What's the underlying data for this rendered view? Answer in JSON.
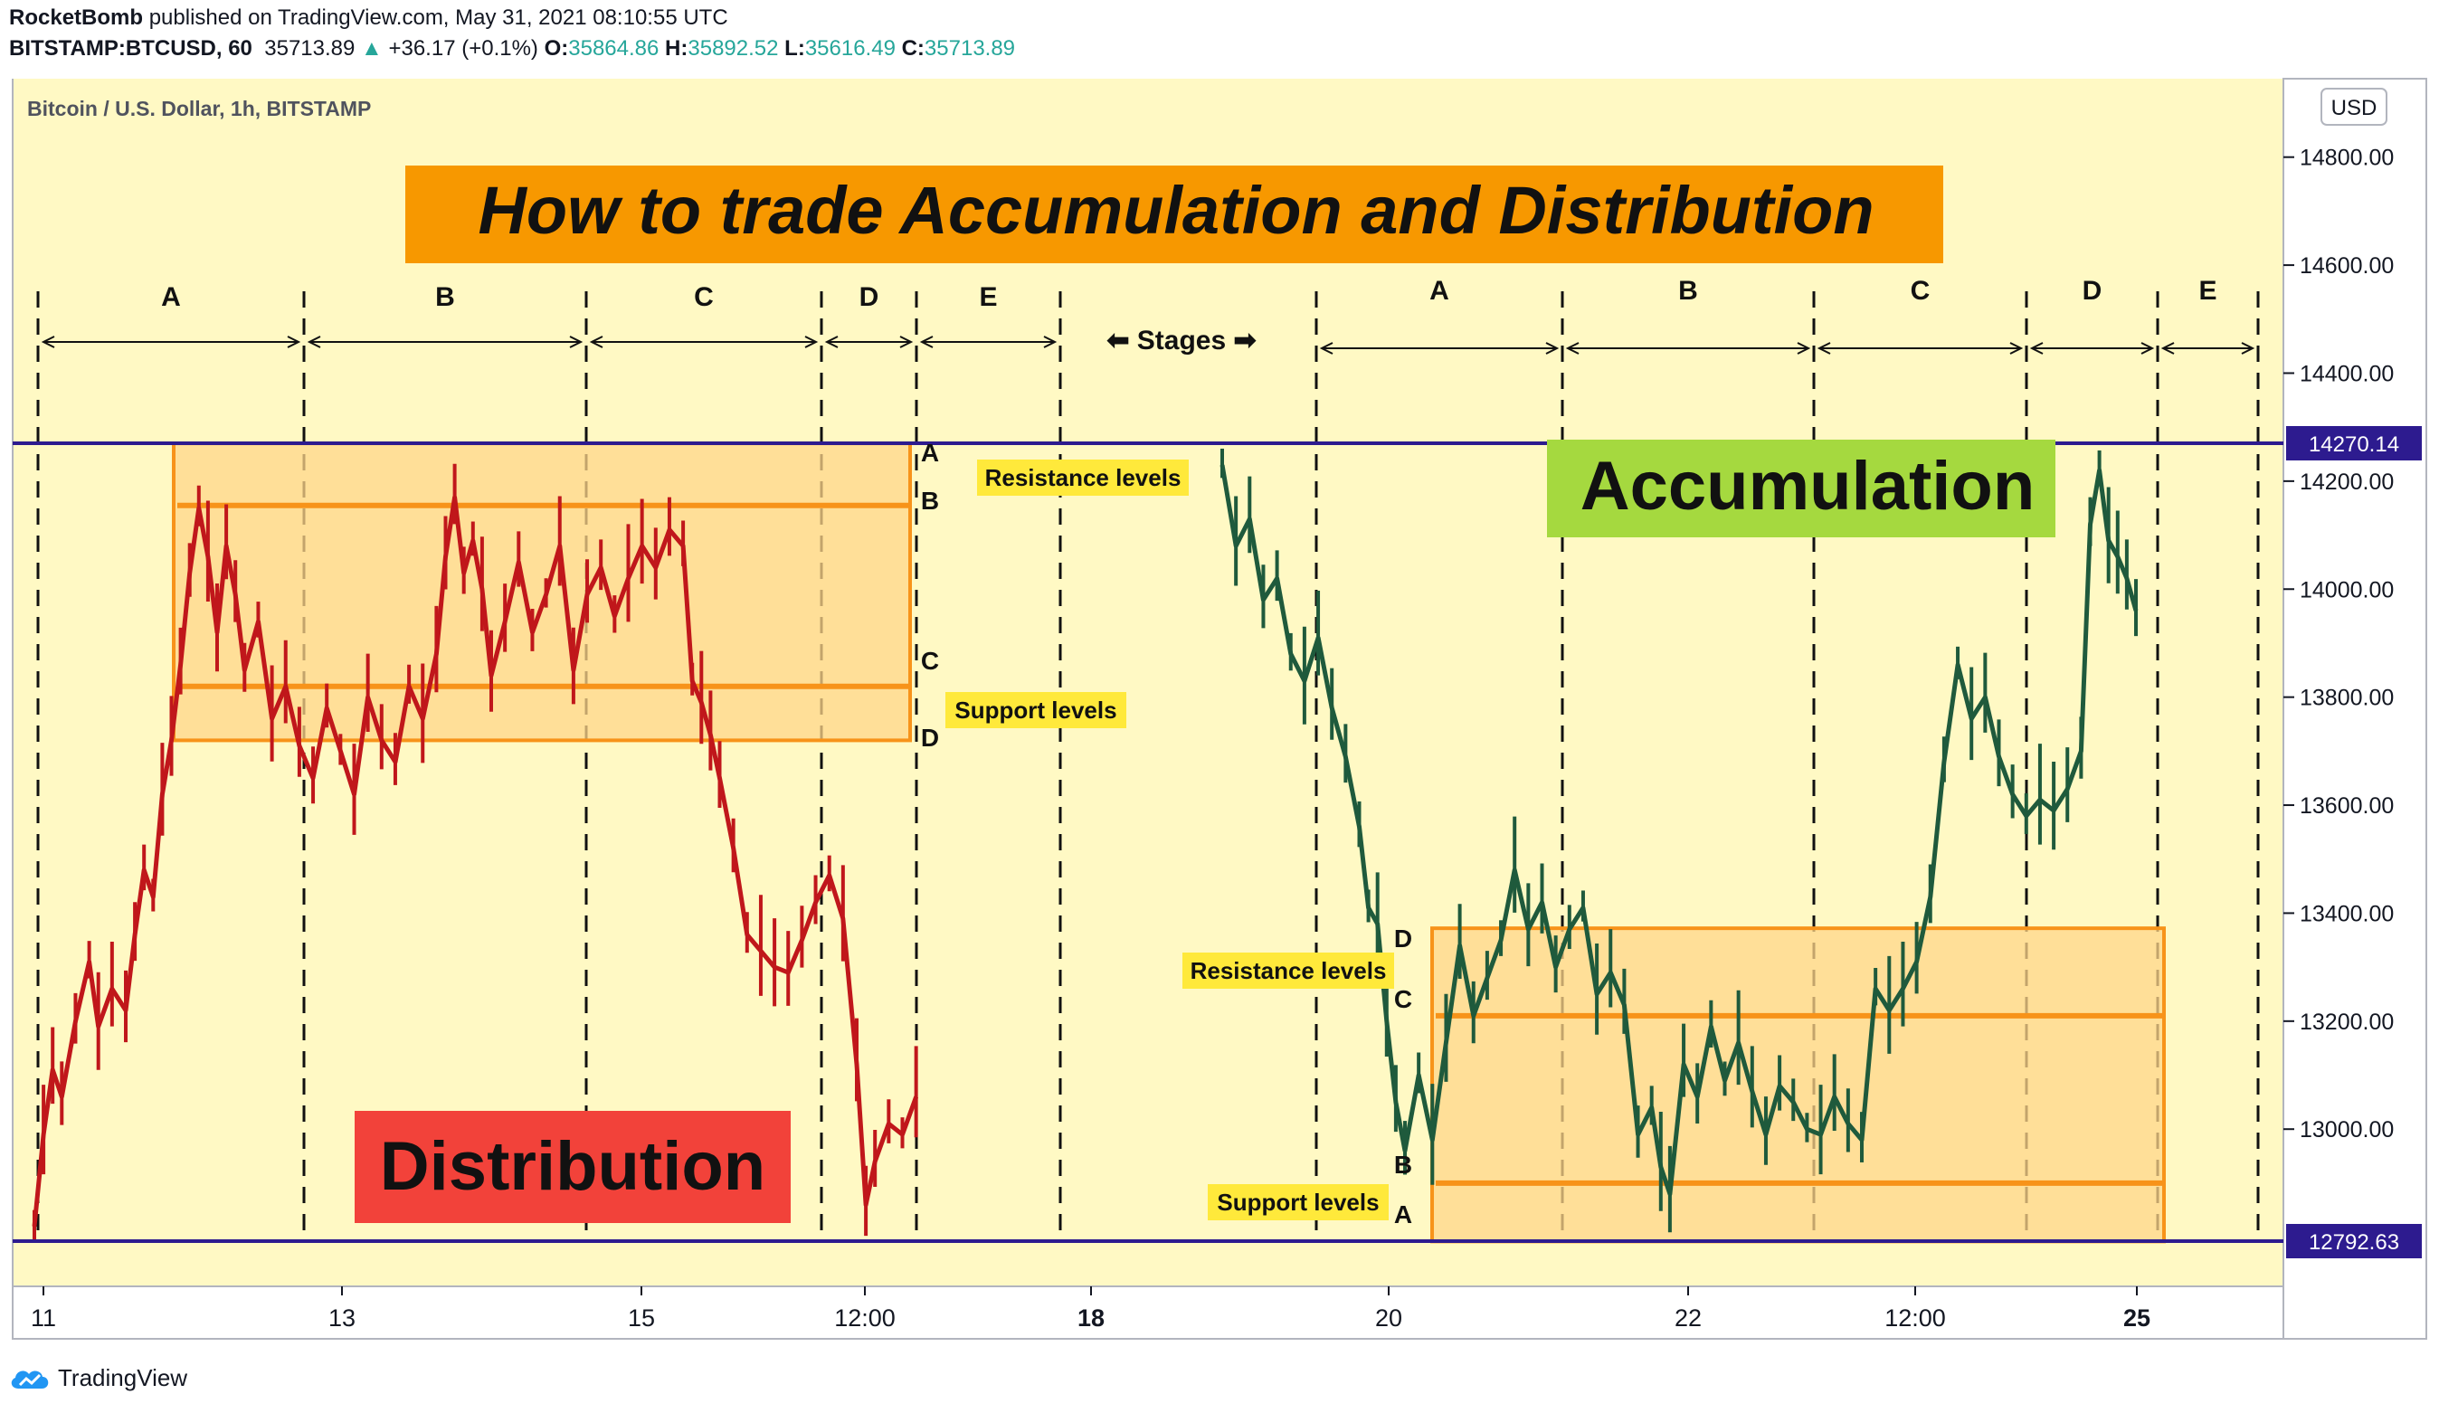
{
  "header": {
    "author": "RocketBomb",
    "published": "published on TradingView.com, May 31, 2021 08:10:55 UTC",
    "symbol": "BITSTAMP:BTCUSD, 60",
    "last": "35713.89",
    "change": "+36.17 (+0.1%)",
    "o_label": "O:",
    "o_value": "35864.86",
    "h_label": "H:",
    "h_value": "35892.52",
    "l_label": "L:",
    "l_value": "35616.49",
    "c_label": "C:",
    "c_value": "35713.89"
  },
  "chart_title": "Bitcoin / U.S. Dollar, 1h, BITSTAMP",
  "currency_button": "USD",
  "footer": {
    "brand": "TradingView"
  },
  "colors": {
    "background": "#fff9c4",
    "distribution_series": "#c0171b",
    "accumulation_series": "#1f5a3c",
    "range_box_fill": "#ffd58a",
    "range_box_border": "#f7931a",
    "horizontal_lines": "#2d1b8f",
    "title_banner": "#f79800",
    "accumulation_badge": "#a5d93f",
    "distribution_badge": "#f2423a",
    "level_label_bg": "#ffe93b"
  },
  "chart_data": {
    "type": "line",
    "title": "How to trade Accumulation and Distribution",
    "x_tick_labels": [
      "11",
      "13",
      "15",
      "12:00",
      "18",
      "20",
      "22",
      "12:00",
      "25"
    ],
    "y_ticks": [
      12800,
      13000,
      13200,
      13400,
      13600,
      13800,
      14000,
      14200,
      14400,
      14600,
      14800
    ],
    "y_tick_labels": [
      "12800.00",
      "13000.00",
      "13200.00",
      "13400.00",
      "13600.00",
      "13800.00",
      "14000.00",
      "14200.00",
      "14400.00",
      "14600.00",
      "14800.00"
    ],
    "ylim": [
      12750,
      14900
    ],
    "price_lines": [
      {
        "value": 14270.14,
        "label": "14270.14"
      },
      {
        "value": 12792.63,
        "label": "12792.63"
      }
    ],
    "stages_label": "⬅ Stages ➡",
    "stage_letters": [
      "A",
      "B",
      "C",
      "D",
      "E"
    ],
    "level_letters": [
      "A",
      "B",
      "C",
      "D"
    ],
    "badges": {
      "accumulation": "Accumulation",
      "distribution": "Distribution"
    },
    "distribution": {
      "resistance_label": "Resistance levels",
      "support_label": "Support levels",
      "box": {
        "low": 13720,
        "high": 14270
      },
      "resistance_level": 14155,
      "support_level": 13820
    },
    "accumulation": {
      "resistance_label": "Resistance levels",
      "support_label": "Support levels",
      "box": {
        "low": 12792,
        "high": 13372
      },
      "resistance_level": 13210,
      "support_level": 12900
    },
    "series": [
      {
        "color": "#c0171b",
        "points": [
          [
            0,
            12820
          ],
          [
            0.2,
            12990
          ],
          [
            0.4,
            13110
          ],
          [
            0.6,
            13060
          ],
          [
            0.9,
            13200
          ],
          [
            1.2,
            13310
          ],
          [
            1.4,
            13190
          ],
          [
            1.7,
            13260
          ],
          [
            2.0,
            13220
          ],
          [
            2.2,
            13360
          ],
          [
            2.4,
            13480
          ],
          [
            2.6,
            13430
          ],
          [
            2.8,
            13620
          ],
          [
            3.0,
            13720
          ],
          [
            3.2,
            13860
          ],
          [
            3.4,
            14030
          ],
          [
            3.6,
            14150
          ],
          [
            3.8,
            14060
          ],
          [
            4.0,
            13920
          ],
          [
            4.2,
            14080
          ],
          [
            4.4,
            13990
          ],
          [
            4.6,
            13850
          ],
          [
            4.9,
            13940
          ],
          [
            5.2,
            13760
          ],
          [
            5.5,
            13820
          ],
          [
            5.8,
            13710
          ],
          [
            6.1,
            13650
          ],
          [
            6.4,
            13780
          ],
          [
            6.7,
            13700
          ],
          [
            7.0,
            13620
          ],
          [
            7.3,
            13800
          ],
          [
            7.6,
            13720
          ],
          [
            7.9,
            13680
          ],
          [
            8.2,
            13820
          ],
          [
            8.5,
            13760
          ],
          [
            8.8,
            13880
          ],
          [
            9.0,
            14060
          ],
          [
            9.2,
            14170
          ],
          [
            9.4,
            14030
          ],
          [
            9.6,
            14090
          ],
          [
            9.8,
            14000
          ],
          [
            10.0,
            13840
          ],
          [
            10.3,
            13940
          ],
          [
            10.6,
            14050
          ],
          [
            10.9,
            13920
          ],
          [
            11.2,
            13990
          ],
          [
            11.5,
            14080
          ],
          [
            11.8,
            13850
          ],
          [
            12.1,
            13990
          ],
          [
            12.4,
            14040
          ],
          [
            12.7,
            13950
          ],
          [
            13.0,
            14020
          ],
          [
            13.3,
            14080
          ],
          [
            13.6,
            14040
          ],
          [
            13.9,
            14110
          ],
          [
            14.2,
            14080
          ],
          [
            14.4,
            13830
          ],
          [
            14.6,
            13790
          ],
          [
            14.8,
            13730
          ],
          [
            15.0,
            13650
          ],
          [
            15.3,
            13520
          ],
          [
            15.6,
            13360
          ],
          [
            15.9,
            13330
          ],
          [
            16.2,
            13300
          ],
          [
            16.5,
            13290
          ],
          [
            16.8,
            13350
          ],
          [
            17.1,
            13420
          ],
          [
            17.4,
            13470
          ],
          [
            17.7,
            13390
          ],
          [
            18.0,
            13120
          ],
          [
            18.2,
            12860
          ],
          [
            18.4,
            12940
          ],
          [
            18.7,
            13010
          ],
          [
            19.0,
            12990
          ],
          [
            19.3,
            13060
          ]
        ]
      },
      {
        "color": "#1f5a3c",
        "points": [
          [
            26.0,
            14230
          ],
          [
            26.3,
            14080
          ],
          [
            26.6,
            14130
          ],
          [
            26.9,
            13980
          ],
          [
            27.2,
            14020
          ],
          [
            27.5,
            13880
          ],
          [
            27.8,
            13830
          ],
          [
            28.1,
            13910
          ],
          [
            28.4,
            13780
          ],
          [
            28.7,
            13690
          ],
          [
            29.0,
            13560
          ],
          [
            29.2,
            13410
          ],
          [
            29.4,
            13380
          ],
          [
            29.6,
            13200
          ],
          [
            29.8,
            13050
          ],
          [
            30.0,
            12960
          ],
          [
            30.3,
            13100
          ],
          [
            30.6,
            12980
          ],
          [
            30.9,
            13160
          ],
          [
            31.2,
            13340
          ],
          [
            31.5,
            13210
          ],
          [
            31.8,
            13280
          ],
          [
            32.1,
            13350
          ],
          [
            32.4,
            13480
          ],
          [
            32.7,
            13370
          ],
          [
            33.0,
            13420
          ],
          [
            33.3,
            13300
          ],
          [
            33.6,
            13370
          ],
          [
            33.9,
            13410
          ],
          [
            34.2,
            13250
          ],
          [
            34.5,
            13290
          ],
          [
            34.8,
            13230
          ],
          [
            35.1,
            12990
          ],
          [
            35.4,
            13040
          ],
          [
            35.6,
            12930
          ],
          [
            35.8,
            12880
          ],
          [
            36.1,
            13120
          ],
          [
            36.4,
            13060
          ],
          [
            36.7,
            13190
          ],
          [
            37.0,
            13090
          ],
          [
            37.3,
            13160
          ],
          [
            37.6,
            13070
          ],
          [
            37.9,
            12990
          ],
          [
            38.2,
            13080
          ],
          [
            38.5,
            13050
          ],
          [
            38.8,
            13000
          ],
          [
            39.1,
            12990
          ],
          [
            39.4,
            13060
          ],
          [
            39.7,
            13010
          ],
          [
            40.0,
            12980
          ],
          [
            40.3,
            13260
          ],
          [
            40.6,
            13220
          ],
          [
            40.9,
            13260
          ],
          [
            41.2,
            13310
          ],
          [
            41.5,
            13430
          ],
          [
            41.8,
            13680
          ],
          [
            42.1,
            13860
          ],
          [
            42.4,
            13760
          ],
          [
            42.7,
            13800
          ],
          [
            43.0,
            13690
          ],
          [
            43.3,
            13620
          ],
          [
            43.6,
            13580
          ],
          [
            43.9,
            13610
          ],
          [
            44.2,
            13590
          ],
          [
            44.5,
            13630
          ],
          [
            44.8,
            13700
          ],
          [
            45.0,
            14120
          ],
          [
            45.2,
            14220
          ],
          [
            45.4,
            14090
          ],
          [
            45.6,
            14060
          ],
          [
            45.8,
            14020
          ],
          [
            46.0,
            13960
          ]
        ]
      }
    ]
  }
}
